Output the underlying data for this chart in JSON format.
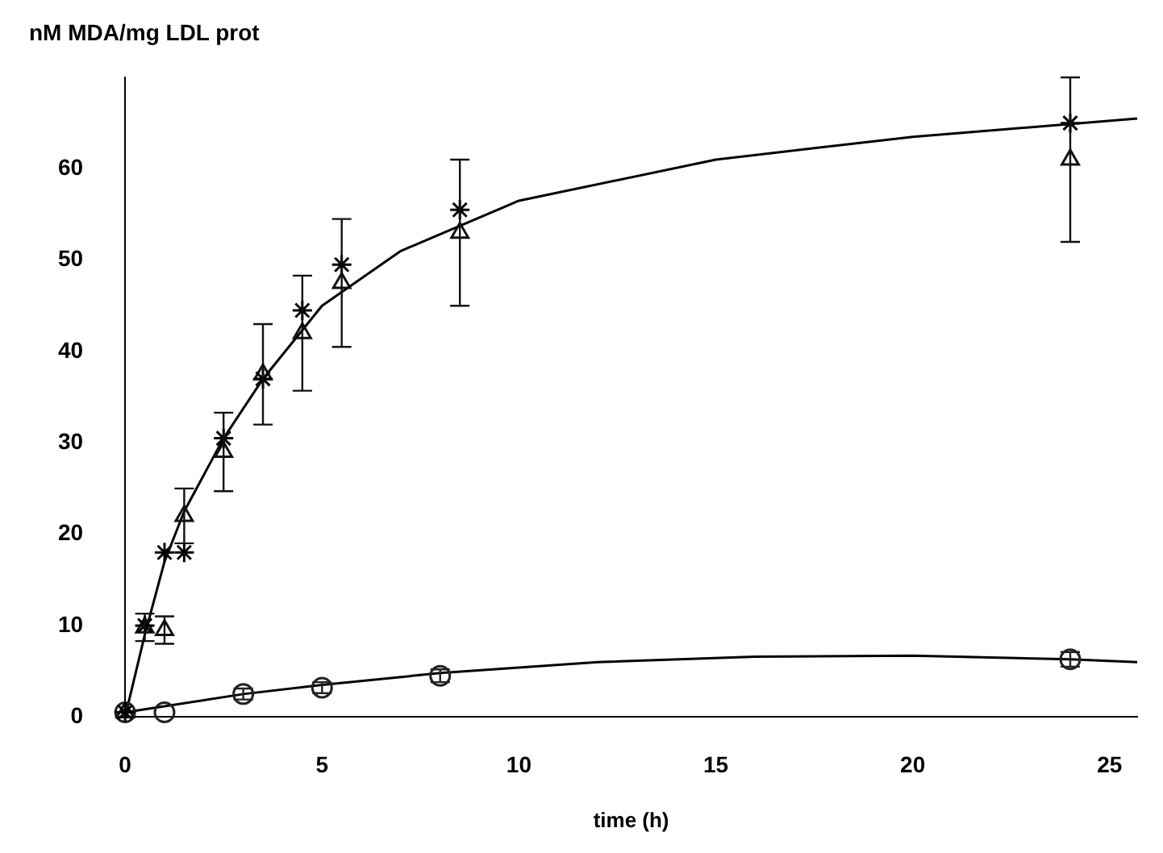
{
  "chart_data": {
    "type": "scatter",
    "ylabel": "nM MDA/mg LDL prot",
    "xlabel": "time (h)",
    "xlim": [
      0,
      25.7
    ],
    "xticks": [
      0,
      5,
      10,
      15,
      20,
      25
    ],
    "ylim": [
      0,
      70
    ],
    "yticks": [
      0,
      10,
      20,
      30,
      40,
      50,
      60
    ],
    "grid": false,
    "legend": false,
    "series": [
      {
        "marker": "cross",
        "color": "#000000",
        "x": [
          0,
          0.5,
          1,
          1.5,
          2.5,
          3.5,
          4.5,
          5.5,
          8.5,
          24
        ],
        "values": [
          0.5,
          10,
          18,
          18,
          30.5,
          37,
          44.5,
          49.5,
          55.5,
          65
        ]
      },
      {
        "marker": "triangle",
        "color": "#111111",
        "x": [
          0,
          0.5,
          1,
          1.5,
          2.5,
          3.5,
          4.5,
          5.5,
          8.5,
          24
        ],
        "values": [
          0.5,
          9.8,
          9.5,
          22,
          29,
          37.5,
          42,
          47.5,
          53,
          61
        ],
        "errors": [
          null,
          1.5,
          1.5,
          3,
          4.3,
          5.5,
          6.3,
          7,
          8,
          9
        ]
      },
      {
        "marker": "circle",
        "color": "#222222",
        "x": [
          0,
          1,
          3,
          5,
          8,
          24
        ],
        "values": [
          0.5,
          0.5,
          2.5,
          3.2,
          4.5,
          6.3
        ],
        "errors": [
          null,
          null,
          0.6,
          0.6,
          0.7,
          0.8
        ]
      },
      {
        "type": "line",
        "marker": "none",
        "color": "#000000",
        "x": [
          0,
          0.5,
          1,
          1.5,
          2.5,
          3.5,
          5,
          7,
          10,
          15,
          20,
          25.7
        ],
        "values": [
          0,
          9,
          17,
          22.5,
          30.5,
          37,
          45,
          51,
          56.5,
          61,
          63.5,
          65.5
        ]
      },
      {
        "type": "line",
        "marker": "none",
        "color": "#000000",
        "x": [
          0,
          3,
          5,
          8,
          12,
          16,
          20,
          24,
          25.7
        ],
        "values": [
          0.5,
          2.5,
          3.5,
          4.8,
          6,
          6.6,
          6.7,
          6.3,
          6
        ]
      }
    ]
  }
}
